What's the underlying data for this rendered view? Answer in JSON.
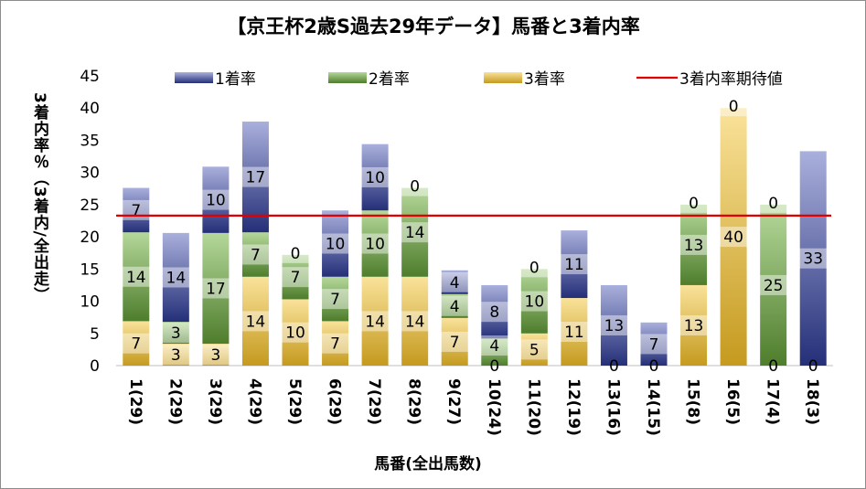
{
  "chart_data": {
    "type": "bar",
    "stacked": true,
    "title": "【京王杯2歳S過去29年データ】馬番と3着内率",
    "xlabel": "馬番(全出馬数)",
    "ylabel": "3着内率％（3着内/全出走）",
    "ylim": [
      0,
      45
    ],
    "yticks": [
      0,
      5,
      10,
      15,
      20,
      25,
      30,
      35,
      40,
      45
    ],
    "categories": [
      "1(29)",
      "2(29)",
      "3(29)",
      "4(29)",
      "5(29)",
      "6(29)",
      "7(29)",
      "8(29)",
      "9(27)",
      "10(24)",
      "11(20)",
      "12(19)",
      "13(16)",
      "14(15)",
      "15(8)",
      "16(5)",
      "17(4)",
      "18(3)"
    ],
    "series": [
      {
        "name": "3着率",
        "color": "#c9a227",
        "values": [
          6.9,
          3.4,
          3.4,
          13.8,
          10.3,
          6.9,
          13.8,
          13.8,
          7.4,
          0,
          5,
          10.5,
          0,
          0,
          12.5,
          40,
          0,
          0
        ]
      },
      {
        "name": "2着率",
        "color": "#5a8a3a",
        "values": [
          13.8,
          3.4,
          17.2,
          6.9,
          6.9,
          6.9,
          10.3,
          13.8,
          3.7,
          4.2,
          10,
          0,
          0,
          0,
          12.5,
          0,
          25,
          0
        ]
      },
      {
        "name": "1着率",
        "color": "#2e3a80",
        "values": [
          6.9,
          13.8,
          10.3,
          17.2,
          0,
          10.3,
          10.3,
          0,
          3.7,
          8.3,
          0,
          10.5,
          12.5,
          6.7,
          0,
          0,
          0,
          33.3
        ]
      }
    ],
    "legend": [
      "1着率",
      "2着率",
      "3着率",
      "3着内率期待値"
    ],
    "legend_position": "top",
    "expected_line": {
      "name": "3着内率期待値",
      "value": 23.3,
      "color": "#e00000"
    }
  }
}
